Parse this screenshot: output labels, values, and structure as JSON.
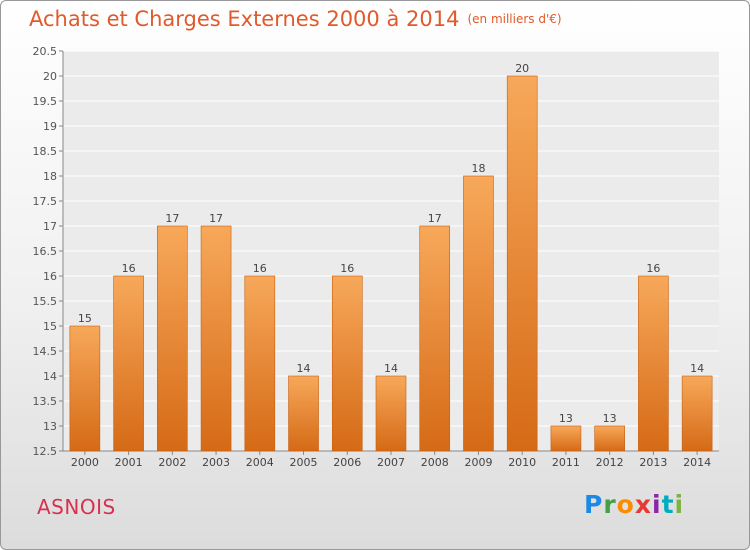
{
  "header": {
    "title": "Achats et Charges Externes 2000 à 2014",
    "unit": "(en milliers d'€)"
  },
  "commune": "ASNOIS",
  "logo": "Proxiti",
  "colors": {
    "bar_top": "#f7a85a",
    "bar_bottom": "#d56a16",
    "title": "#e05a2b",
    "commune": "#d9304e"
  },
  "chart_data": {
    "type": "bar",
    "title": "Achats et Charges Externes 2000 à 2014",
    "subtitle": "(en milliers d'€)",
    "categories": [
      "2000",
      "2001",
      "2002",
      "2003",
      "2004",
      "2005",
      "2006",
      "2007",
      "2008",
      "2009",
      "2010",
      "2011",
      "2012",
      "2013",
      "2014"
    ],
    "values": [
      15,
      16,
      17,
      17,
      16,
      14,
      16,
      14,
      17,
      18,
      20,
      13,
      13,
      16,
      14
    ],
    "data_labels": [
      "15",
      "16",
      "17",
      "17",
      "16",
      "14",
      "16",
      "14",
      "17",
      "18",
      "20",
      "13",
      "13",
      "16",
      "14"
    ],
    "ylim": [
      12.5,
      20.5
    ],
    "yticks": [
      "12.5",
      "13",
      "13.5",
      "14",
      "14.5",
      "15",
      "15.5",
      "16",
      "16.5",
      "17",
      "17.5",
      "18",
      "18.5",
      "19",
      "19.5",
      "20",
      "20.5"
    ],
    "grid": true,
    "legend": "none"
  }
}
